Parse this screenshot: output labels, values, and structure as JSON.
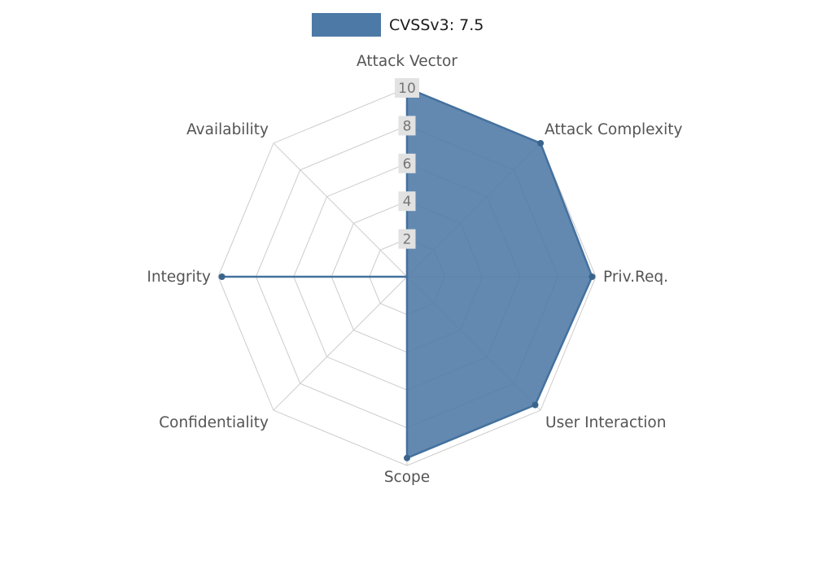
{
  "legend": {
    "label": "CVSSv3: 7.5"
  },
  "chart_data": {
    "type": "radar",
    "title": "",
    "categories": [
      "Attack Vector",
      "Attack Complexity",
      "Priv.Req.",
      "User Interaction",
      "Scope",
      "Confidentiality",
      "Integrity",
      "Availability"
    ],
    "series": [
      {
        "name": "CVSSv3: 7.5",
        "values": [
          10,
          10,
          9.8,
          9.6,
          9.6,
          0,
          9.8,
          0
        ]
      }
    ],
    "ticks": [
      2,
      4,
      6,
      8,
      10
    ],
    "ylim": [
      0,
      10
    ],
    "grid": true,
    "legend_position": "top-center",
    "colors": {
      "fill": "#4d79a6",
      "fill_opacity": "0.88",
      "stroke": "#44719e",
      "dot": "#3a648c",
      "grid": "#cccccc",
      "tick_box": "#e2e2e2",
      "tick_text": "#757575",
      "label_text": "#545454"
    }
  }
}
